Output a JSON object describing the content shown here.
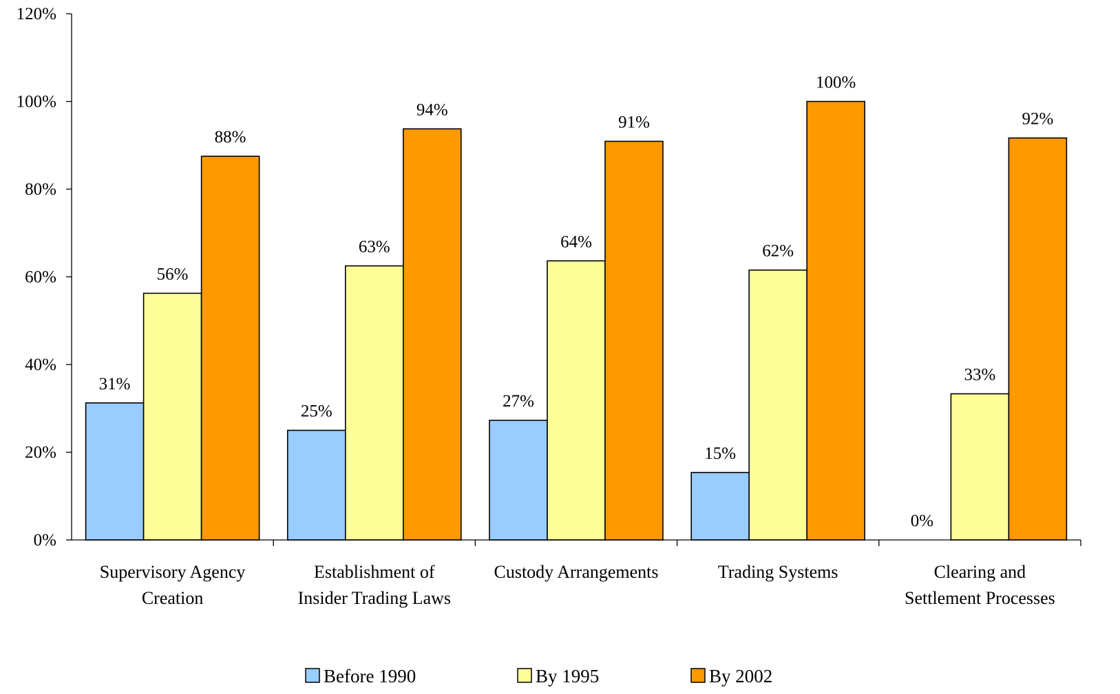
{
  "chart_data": {
    "type": "bar",
    "categories": [
      [
        "Supervisory Agency",
        "Creation"
      ],
      [
        "Establishment of",
        "Insider Trading Laws"
      ],
      [
        "Custody Arrangements"
      ],
      [
        "Trading Systems"
      ],
      [
        "Clearing and",
        "Settlement Processes"
      ]
    ],
    "series": [
      {
        "name": "Before 1990",
        "color": "#99ccff",
        "values": [
          31.25,
          25,
          27.27,
          15.38,
          0
        ],
        "labels": [
          "31%",
          "25%",
          "27%",
          "15%",
          "0%"
        ]
      },
      {
        "name": "By 1995",
        "color": "#ffff99",
        "values": [
          56.25,
          62.5,
          63.64,
          61.54,
          33.33
        ],
        "labels": [
          "56%",
          "63%",
          "64%",
          "62%",
          "33%"
        ]
      },
      {
        "name": "By 2002",
        "color": "#ff9900",
        "values": [
          87.5,
          93.75,
          90.91,
          100,
          91.67
        ],
        "labels": [
          "88%",
          "94%",
          "91%",
          "100%",
          "92%"
        ]
      }
    ],
    "ylim": [
      0,
      120
    ],
    "yticks": [
      0,
      20,
      40,
      60,
      80,
      100,
      120
    ],
    "ytick_labels": [
      "0%",
      "20%",
      "40%",
      "60%",
      "80%",
      "100%",
      "120%"
    ],
    "grid": false,
    "legend_position": "bottom"
  }
}
